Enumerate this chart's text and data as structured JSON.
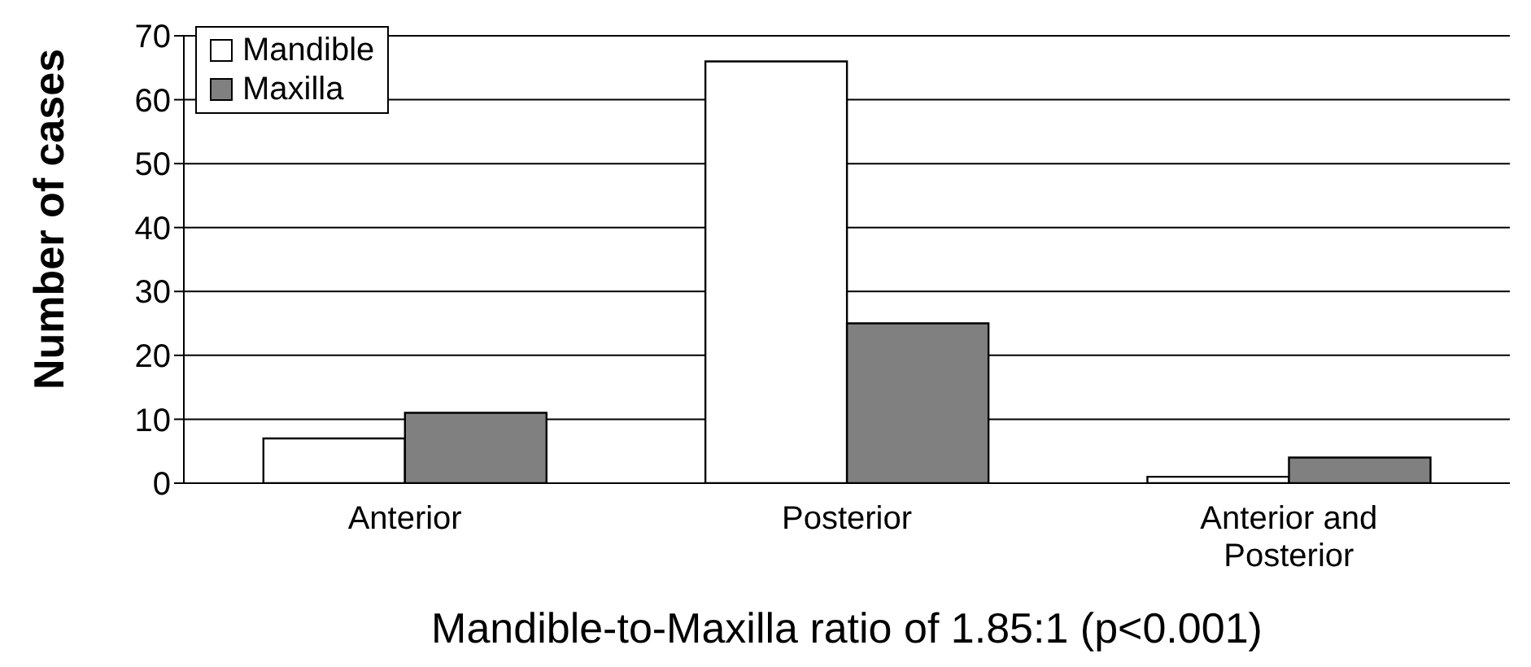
{
  "chart_data": {
    "type": "bar",
    "ylabel": "Number of cases",
    "xlabel": "Mandible-to-Maxilla ratio of 1.85:1 (p<0.001)",
    "categories": [
      "Anterior",
      "Posterior",
      "Anterior and Posterior"
    ],
    "series": [
      {
        "name": "Mandible",
        "color": "#ffffff",
        "values": [
          7,
          66,
          1
        ]
      },
      {
        "name": "Maxilla",
        "color": "#808080",
        "values": [
          11,
          25,
          4
        ]
      }
    ],
    "ylim": [
      0,
      70
    ],
    "yticks": [
      0,
      10,
      20,
      30,
      40,
      50,
      60,
      70
    ],
    "grid": "y",
    "legend": "top left"
  }
}
